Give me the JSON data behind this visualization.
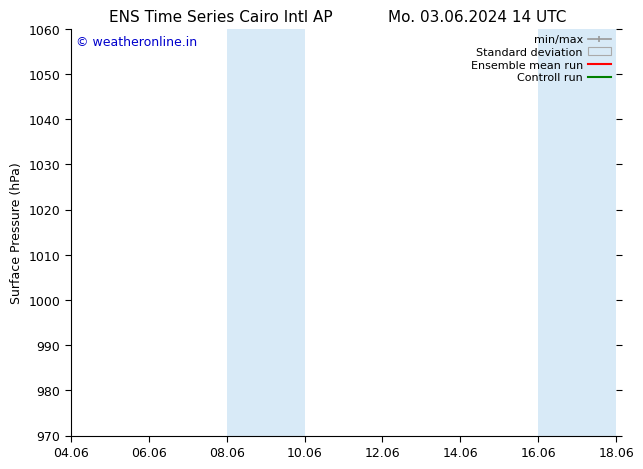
{
  "title_left": "ENS Time Series Cairo Intl AP",
  "title_right": "Mo. 03.06.2024 14 UTC",
  "ylabel": "Surface Pressure (hPa)",
  "ylim": [
    970,
    1060
  ],
  "yticks": [
    970,
    980,
    990,
    1000,
    1010,
    1020,
    1030,
    1040,
    1050,
    1060
  ],
  "xtick_labels": [
    "04.06",
    "06.06",
    "08.06",
    "10.06",
    "12.06",
    "14.06",
    "16.06",
    "18.06"
  ],
  "xtick_positions": [
    0,
    2,
    4,
    6,
    8,
    10,
    12,
    14
  ],
  "shaded_regions": [
    {
      "x_start": 4,
      "x_end": 6,
      "color": "#d8eaf7"
    },
    {
      "x_start": 12,
      "x_end": 14,
      "color": "#d8eaf7"
    }
  ],
  "watermark_text": "© weatheronline.in",
  "watermark_color": "#0000cc",
  "background_color": "#ffffff",
  "title_fontsize": 11,
  "axis_label_fontsize": 9,
  "tick_fontsize": 9,
  "legend_fontsize": 8,
  "watermark_fontsize": 9
}
